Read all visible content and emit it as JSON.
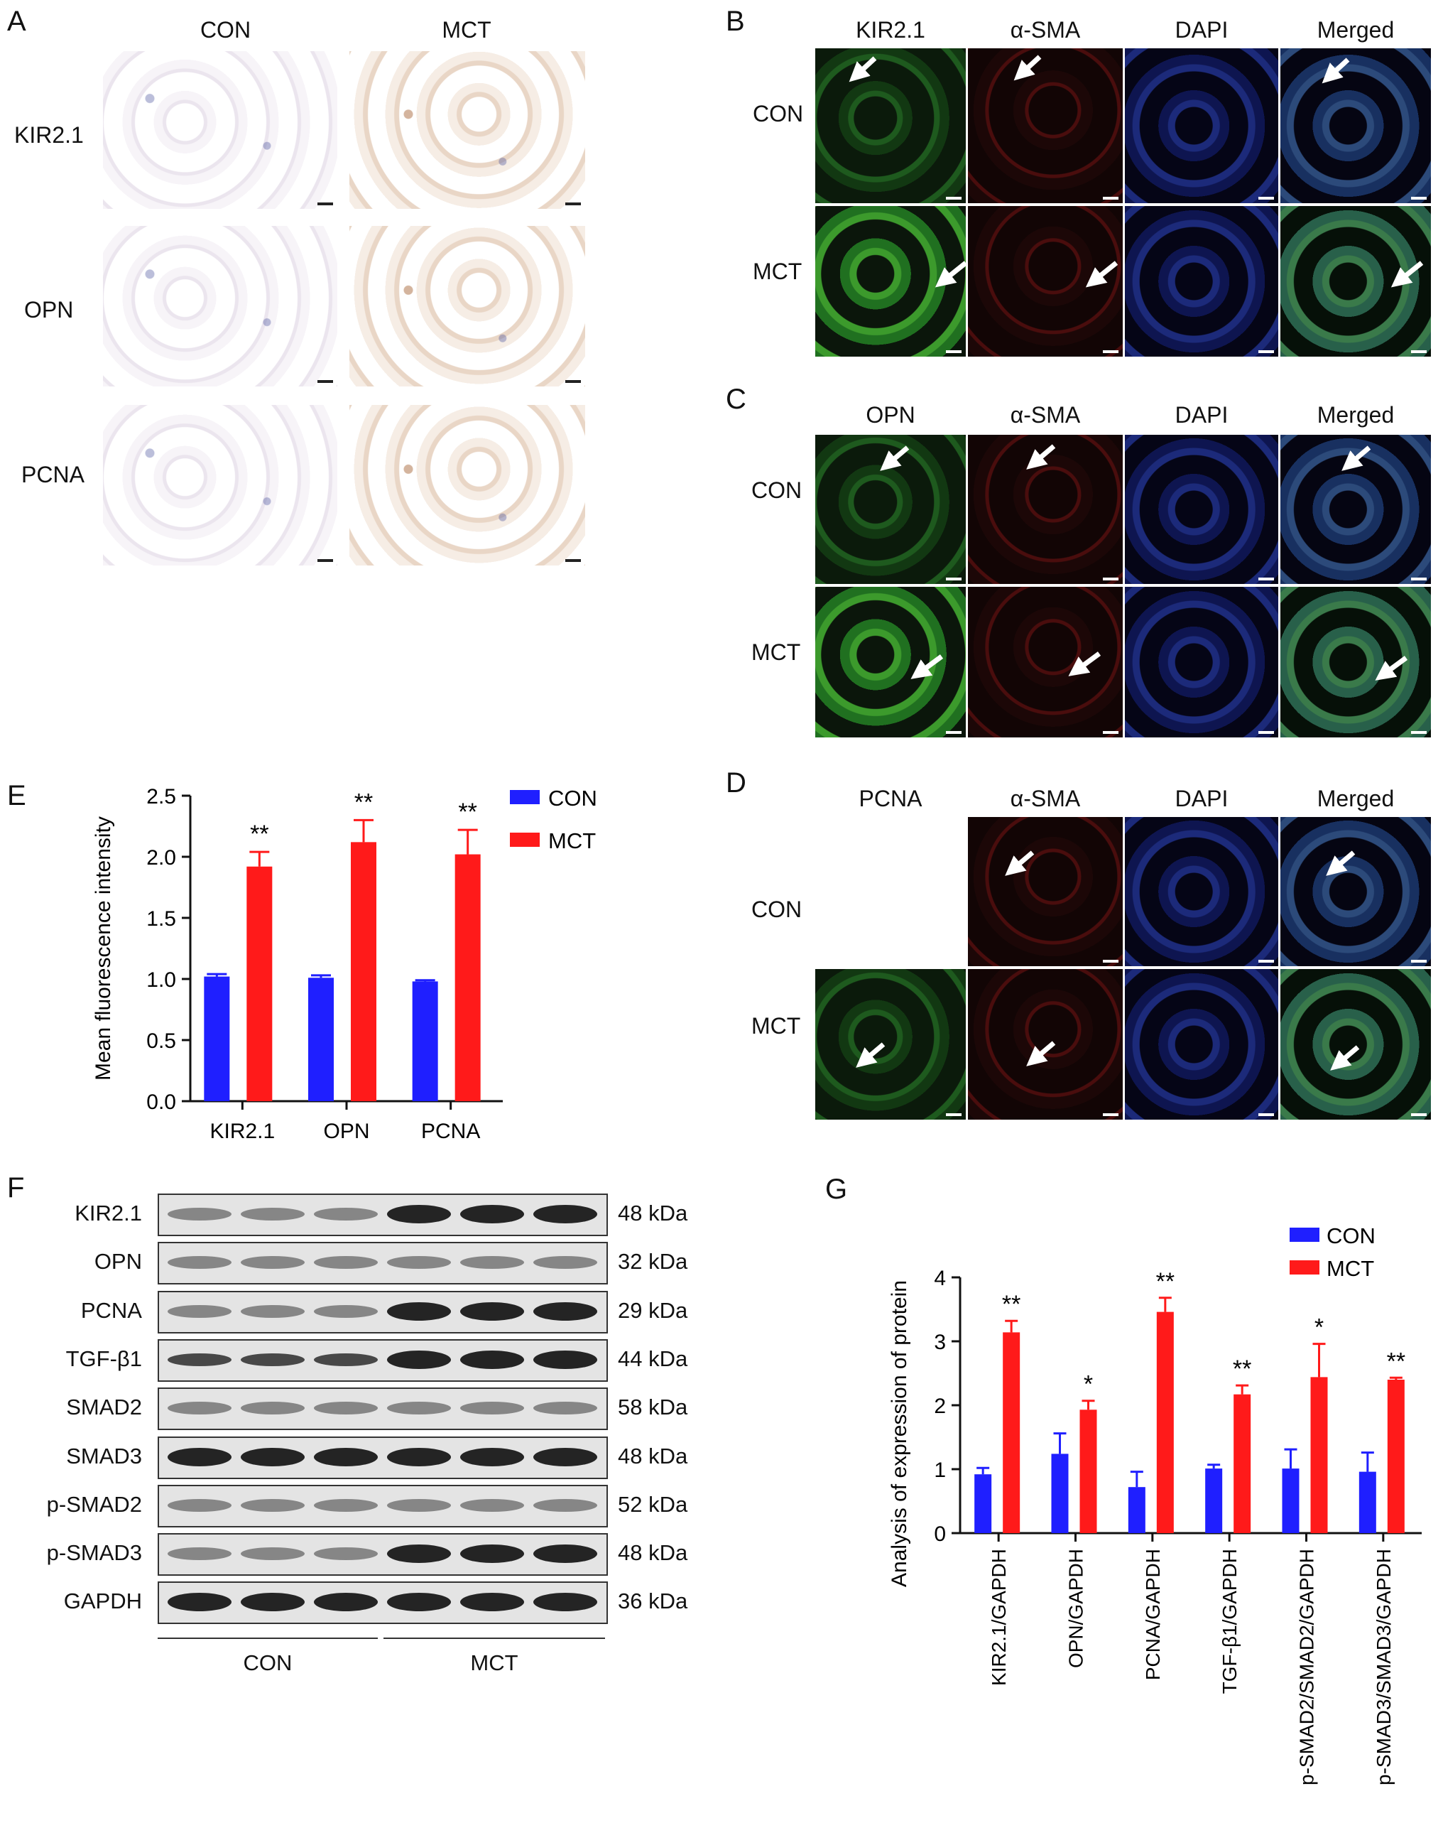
{
  "panel_letters": {
    "a": "A",
    "b": "B",
    "c": "C",
    "d": "D",
    "e": "E",
    "f": "F",
    "g": "G"
  },
  "panel_a": {
    "columns": [
      "CON",
      "MCT"
    ],
    "rows": [
      "KIR2.1",
      "OPN",
      "PCNA"
    ]
  },
  "panel_b": {
    "columns": [
      "KIR2.1",
      "α-SMA",
      "DAPI",
      "Merged"
    ],
    "rows": [
      "CON",
      "MCT"
    ]
  },
  "panel_c": {
    "columns": [
      "OPN",
      "α-SMA",
      "DAPI",
      "Merged"
    ],
    "rows": [
      "CON",
      "MCT"
    ]
  },
  "panel_d": {
    "columns": [
      "PCNA",
      "α-SMA",
      "DAPI",
      "Merged"
    ],
    "rows": [
      "CON",
      "MCT"
    ]
  },
  "panel_f": {
    "proteins": [
      "KIR2.1",
      "OPN",
      "PCNA",
      "TGF-β1",
      "SMAD2",
      "SMAD3",
      "p-SMAD2",
      "p-SMAD3",
      "GAPDH"
    ],
    "sizes": [
      "48 kDa",
      "32 kDa",
      "29 kDa",
      "44 kDa",
      "58 kDa",
      "48 kDa",
      "52 kDa",
      "48 kDa",
      "36 kDa"
    ],
    "groups": [
      "CON",
      "MCT"
    ]
  },
  "colors": {
    "con": "#1f1fff",
    "mct": "#ff1a1a"
  },
  "chart_data": [
    {
      "id": "E",
      "type": "bar",
      "categories": [
        "KIR2.1",
        "OPN",
        "PCNA"
      ],
      "series": [
        {
          "name": "CON",
          "values": [
            1.02,
            1.01,
            0.98
          ],
          "errors": [
            0.02,
            0.02,
            0.01
          ]
        },
        {
          "name": "MCT",
          "values": [
            1.92,
            2.12,
            2.02
          ],
          "errors": [
            0.12,
            0.18,
            0.2
          ]
        }
      ],
      "significance": [
        "**",
        "**",
        "**"
      ],
      "ylabel": "Mean fluorescence intensity",
      "xlabel": "",
      "ylim": [
        0,
        2.5
      ],
      "yticks": [
        "0.0",
        "0.5",
        "1.0",
        "1.5",
        "2.0",
        "2.5"
      ],
      "legend": "top-right"
    },
    {
      "id": "G",
      "type": "bar",
      "categories": [
        "KIR2.1/GAPDH",
        "OPN/GAPDH",
        "PCNA/GAPDH",
        "TGF-β1/GAPDH",
        "p-SMAD2/SMAD2/GAPDH",
        "p-SMAD3/SMAD3/GAPDH"
      ],
      "series": [
        {
          "name": "CON",
          "values": [
            0.92,
            1.24,
            0.72,
            1.01,
            1.01,
            0.96
          ],
          "errors": [
            0.1,
            0.32,
            0.24,
            0.06,
            0.3,
            0.3
          ]
        },
        {
          "name": "MCT",
          "values": [
            3.14,
            1.93,
            3.46,
            2.17,
            2.44,
            2.4
          ],
          "errors": [
            0.18,
            0.14,
            0.22,
            0.14,
            0.52,
            0.03
          ]
        }
      ],
      "significance": [
        "**",
        "*",
        "**",
        "**",
        "*",
        "**"
      ],
      "ylabel": "Analysis of expression of protein",
      "xlabel": "",
      "ylim": [
        0,
        4
      ],
      "yticks": [
        "0",
        "1",
        "2",
        "3",
        "4"
      ],
      "legend": "top-right"
    }
  ]
}
